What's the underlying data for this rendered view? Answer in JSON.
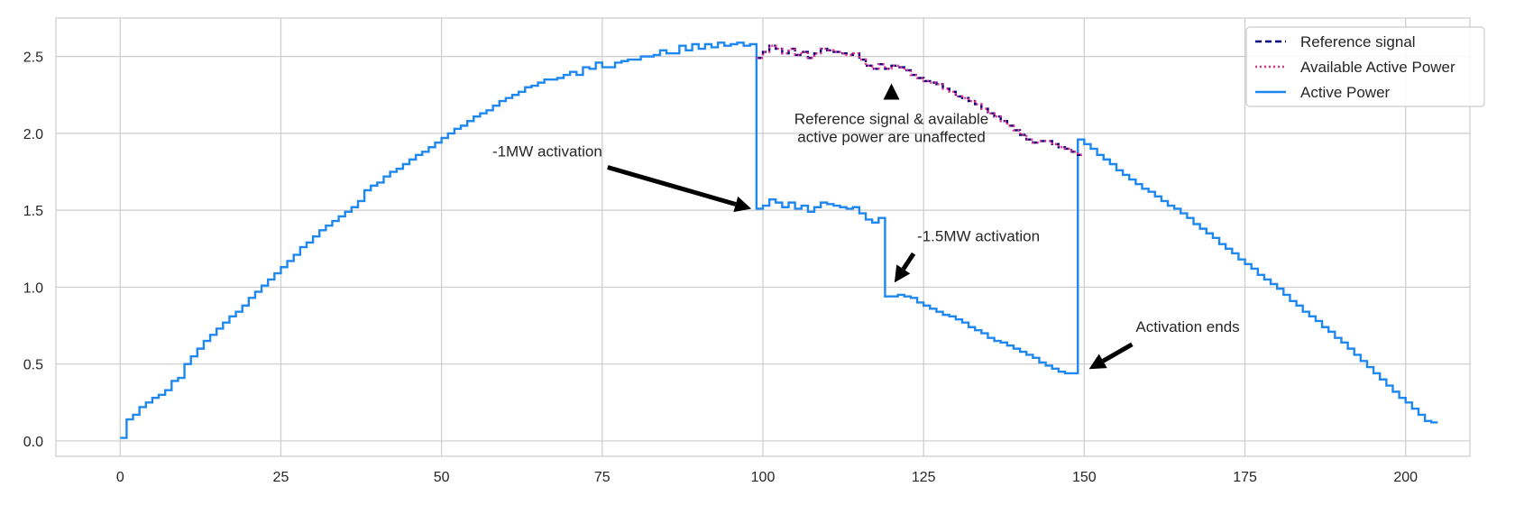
{
  "chart_data": {
    "type": "line",
    "title": "",
    "xlabel": "",
    "ylabel": "",
    "xlim": [
      -10,
      210
    ],
    "ylim": [
      -0.1,
      2.75
    ],
    "xticks": [
      0,
      25,
      50,
      75,
      100,
      125,
      150,
      175,
      200
    ],
    "yticks": [
      0.0,
      0.5,
      1.0,
      1.5,
      2.0,
      2.5
    ],
    "grid": true,
    "legend_position": "top-right",
    "step": true,
    "colors": {
      "reference": "#000080",
      "available": "#e0308a",
      "active": "#1e88f0",
      "annotation": "#000000",
      "grid": "#cccccc"
    },
    "legend": [
      "Reference signal",
      "Available Active Power",
      "Active Power"
    ],
    "series": [
      {
        "name": "Reference signal",
        "x_start": 99,
        "values": [
          2.49,
          2.53,
          2.57,
          2.55,
          2.52,
          2.55,
          2.51,
          2.53,
          2.49,
          2.52,
          2.55,
          2.54,
          2.53,
          2.52,
          2.51,
          2.52,
          2.48,
          2.44,
          2.42,
          2.45,
          2.42,
          2.44,
          2.43,
          2.41,
          2.38,
          2.36,
          2.34,
          2.33,
          2.32,
          2.29,
          2.27,
          2.24,
          2.23,
          2.21,
          2.19,
          2.16,
          2.13,
          2.11,
          2.08,
          2.05,
          2.02,
          1.99,
          1.96,
          1.94,
          1.95,
          1.95,
          1.93,
          1.91,
          1.9,
          1.88,
          1.86
        ]
      },
      {
        "name": "Available Active Power",
        "x_start": 99,
        "values": [
          2.49,
          2.53,
          2.57,
          2.55,
          2.52,
          2.55,
          2.51,
          2.53,
          2.49,
          2.52,
          2.55,
          2.54,
          2.53,
          2.52,
          2.51,
          2.52,
          2.48,
          2.44,
          2.42,
          2.45,
          2.42,
          2.44,
          2.43,
          2.41,
          2.38,
          2.36,
          2.34,
          2.33,
          2.32,
          2.29,
          2.27,
          2.24,
          2.23,
          2.21,
          2.19,
          2.16,
          2.13,
          2.11,
          2.08,
          2.05,
          2.02,
          1.99,
          1.96,
          1.94,
          1.95,
          1.95,
          1.93,
          1.91,
          1.9,
          1.88,
          1.86
        ]
      },
      {
        "name": "Active Power",
        "x_start": 0,
        "values": [
          0.02,
          0.14,
          0.17,
          0.22,
          0.25,
          0.28,
          0.3,
          0.33,
          0.39,
          0.41,
          0.5,
          0.55,
          0.6,
          0.65,
          0.69,
          0.73,
          0.77,
          0.81,
          0.84,
          0.88,
          0.93,
          0.97,
          1.01,
          1.05,
          1.09,
          1.13,
          1.17,
          1.21,
          1.26,
          1.29,
          1.33,
          1.37,
          1.4,
          1.43,
          1.46,
          1.49,
          1.52,
          1.56,
          1.63,
          1.66,
          1.68,
          1.72,
          1.75,
          1.77,
          1.8,
          1.83,
          1.86,
          1.88,
          1.91,
          1.94,
          1.97,
          2.0,
          2.03,
          2.05,
          2.08,
          2.11,
          2.13,
          2.15,
          2.18,
          2.21,
          2.23,
          2.25,
          2.27,
          2.3,
          2.31,
          2.33,
          2.35,
          2.35,
          2.36,
          2.38,
          2.4,
          2.38,
          2.43,
          2.42,
          2.46,
          2.43,
          2.43,
          2.46,
          2.47,
          2.48,
          2.48,
          2.5,
          2.5,
          2.51,
          2.54,
          2.52,
          2.52,
          2.57,
          2.54,
          2.58,
          2.55,
          2.58,
          2.56,
          2.59,
          2.57,
          2.58,
          2.59,
          2.57,
          2.58,
          1.51,
          1.53,
          1.57,
          1.55,
          1.52,
          1.55,
          1.51,
          1.53,
          1.49,
          1.52,
          1.55,
          1.54,
          1.53,
          1.52,
          1.51,
          1.52,
          1.48,
          1.44,
          1.42,
          1.45,
          0.94,
          0.94,
          0.95,
          0.94,
          0.93,
          0.9,
          0.88,
          0.86,
          0.84,
          0.82,
          0.81,
          0.79,
          0.77,
          0.74,
          0.72,
          0.7,
          0.67,
          0.65,
          0.64,
          0.62,
          0.6,
          0.58,
          0.56,
          0.54,
          0.51,
          0.49,
          0.47,
          0.45,
          0.44,
          0.44,
          1.96,
          1.93,
          1.9,
          1.86,
          1.83,
          1.8,
          1.76,
          1.73,
          1.7,
          1.67,
          1.64,
          1.62,
          1.59,
          1.56,
          1.53,
          1.51,
          1.48,
          1.45,
          1.41,
          1.38,
          1.35,
          1.32,
          1.28,
          1.25,
          1.22,
          1.18,
          1.15,
          1.12,
          1.08,
          1.05,
          1.02,
          0.99,
          0.95,
          0.91,
          0.88,
          0.84,
          0.81,
          0.78,
          0.74,
          0.71,
          0.67,
          0.64,
          0.6,
          0.56,
          0.52,
          0.48,
          0.44,
          0.4,
          0.36,
          0.32,
          0.28,
          0.25,
          0.21,
          0.17,
          0.13,
          0.12
        ]
      }
    ],
    "annotations": [
      {
        "text": "-1MW activation",
        "x": 99,
        "y": 1.5,
        "text_x": 75,
        "text_y": 1.85,
        "align": "end"
      },
      {
        "text": "Reference signal & available\nactive power are unaffected",
        "x": 120,
        "y": 2.36,
        "text_x": 120,
        "text_y": 2.06,
        "align": "middle"
      },
      {
        "text": "-1.5MW activation",
        "x": 120,
        "y": 1.0,
        "text_x": 124,
        "text_y": 1.3,
        "align": "start"
      },
      {
        "text": "Activation ends",
        "x": 150,
        "y": 0.45,
        "text_x": 158,
        "text_y": 0.71,
        "align": "start"
      }
    ]
  }
}
